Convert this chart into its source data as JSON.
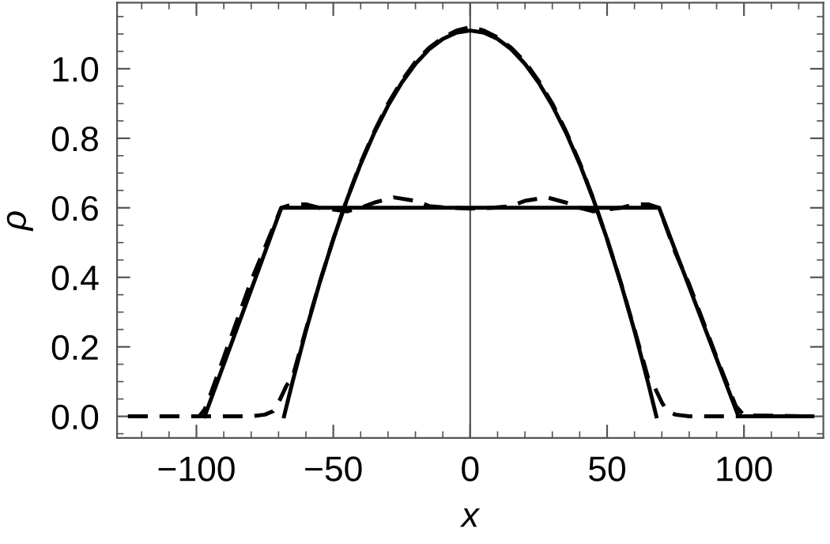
{
  "chart_data": {
    "type": "line",
    "xlabel": "x",
    "ylabel": "ρ",
    "xlim": [
      -129,
      129
    ],
    "ylim": [
      -0.062,
      1.19
    ],
    "xticks": [
      {
        "value": -100,
        "label": "−100"
      },
      {
        "value": -50,
        "label": "−50"
      },
      0,
      50,
      100
    ],
    "yticks": [
      {
        "value": 0,
        "label": "0.0"
      },
      {
        "value": 0.2,
        "label": "0.2"
      },
      {
        "value": 0.4,
        "label": "0.4"
      },
      {
        "value": 0.6,
        "label": "0.6"
      },
      {
        "value": 0.8,
        "label": "0.8"
      },
      {
        "value": 1.0,
        "label": "1.0"
      }
    ],
    "grid": false,
    "marker": "none",
    "ref_lines": [
      {
        "axis": "x",
        "value": 0,
        "color": "#555555",
        "line_style": "solid"
      }
    ],
    "series": [
      {
        "color": "#000000",
        "line_style": "solid",
        "x": [
          -68,
          -65,
          -60,
          -55,
          -50,
          -45,
          -40,
          -35,
          -30,
          -25,
          -20,
          -15,
          -10,
          -5,
          0,
          5,
          10,
          15,
          20,
          25,
          30,
          35,
          40,
          45,
          50,
          55,
          60,
          65,
          68
        ],
        "values": [
          0,
          0.096,
          0.246,
          0.384,
          0.51,
          0.624,
          0.726,
          0.816,
          0.894,
          0.96,
          1.014,
          1.056,
          1.086,
          1.104,
          1.11,
          1.104,
          1.086,
          1.056,
          1.014,
          0.96,
          0.894,
          0.816,
          0.726,
          0.624,
          0.51,
          0.384,
          0.246,
          0.096,
          0
        ]
      },
      {
        "color": "#000000",
        "line_style": "dashed",
        "x": [
          -125,
          -80,
          -75,
          -72,
          -70,
          -67,
          -65,
          -60,
          -55,
          -50,
          -45,
          -40,
          -35,
          -30,
          -25,
          -20,
          -15,
          -10,
          -5,
          0,
          5,
          10,
          15,
          20,
          25,
          30,
          35,
          40,
          45,
          50,
          55,
          60,
          65,
          67,
          70,
          72,
          75,
          80,
          125
        ],
        "values": [
          0,
          0,
          0.005,
          0.015,
          0.04,
          0.09,
          0.11,
          0.25,
          0.385,
          0.51,
          0.625,
          0.73,
          0.82,
          0.9,
          0.965,
          1.02,
          1.06,
          1.09,
          1.11,
          1.12,
          1.11,
          1.09,
          1.06,
          1.02,
          0.965,
          0.9,
          0.82,
          0.73,
          0.625,
          0.51,
          0.385,
          0.25,
          0.11,
          0.09,
          0.04,
          0.015,
          0.005,
          0,
          0
        ]
      },
      {
        "color": "#000000",
        "line_style": "solid",
        "x": [
          -97,
          -69,
          69,
          98,
          125
        ],
        "values": [
          0,
          0.6,
          0.6,
          0,
          0
        ]
      },
      {
        "color": "#000000",
        "line_style": "dashed",
        "x": [
          -125,
          -99,
          -97,
          -95,
          -90,
          -80,
          -69,
          -65,
          -60,
          -55,
          -50,
          -45,
          -40,
          -35,
          -28,
          -20,
          -15,
          -8,
          0,
          8,
          15,
          20,
          28,
          35,
          40,
          45,
          50,
          55,
          60,
          65,
          69,
          75,
          80,
          90,
          95,
          97,
          100,
          125
        ],
        "values": [
          0,
          0,
          0.02,
          0.06,
          0.17,
          0.39,
          0.6,
          0.61,
          0.61,
          0.6,
          0.595,
          0.59,
          0.6,
          0.615,
          0.63,
          0.62,
          0.605,
          0.6,
          0.598,
          0.6,
          0.605,
          0.62,
          0.63,
          0.615,
          0.6,
          0.59,
          0.595,
          0.6,
          0.61,
          0.61,
          0.6,
          0.47,
          0.38,
          0.17,
          0.07,
          0.03,
          0.003,
          0
        ]
      }
    ]
  }
}
